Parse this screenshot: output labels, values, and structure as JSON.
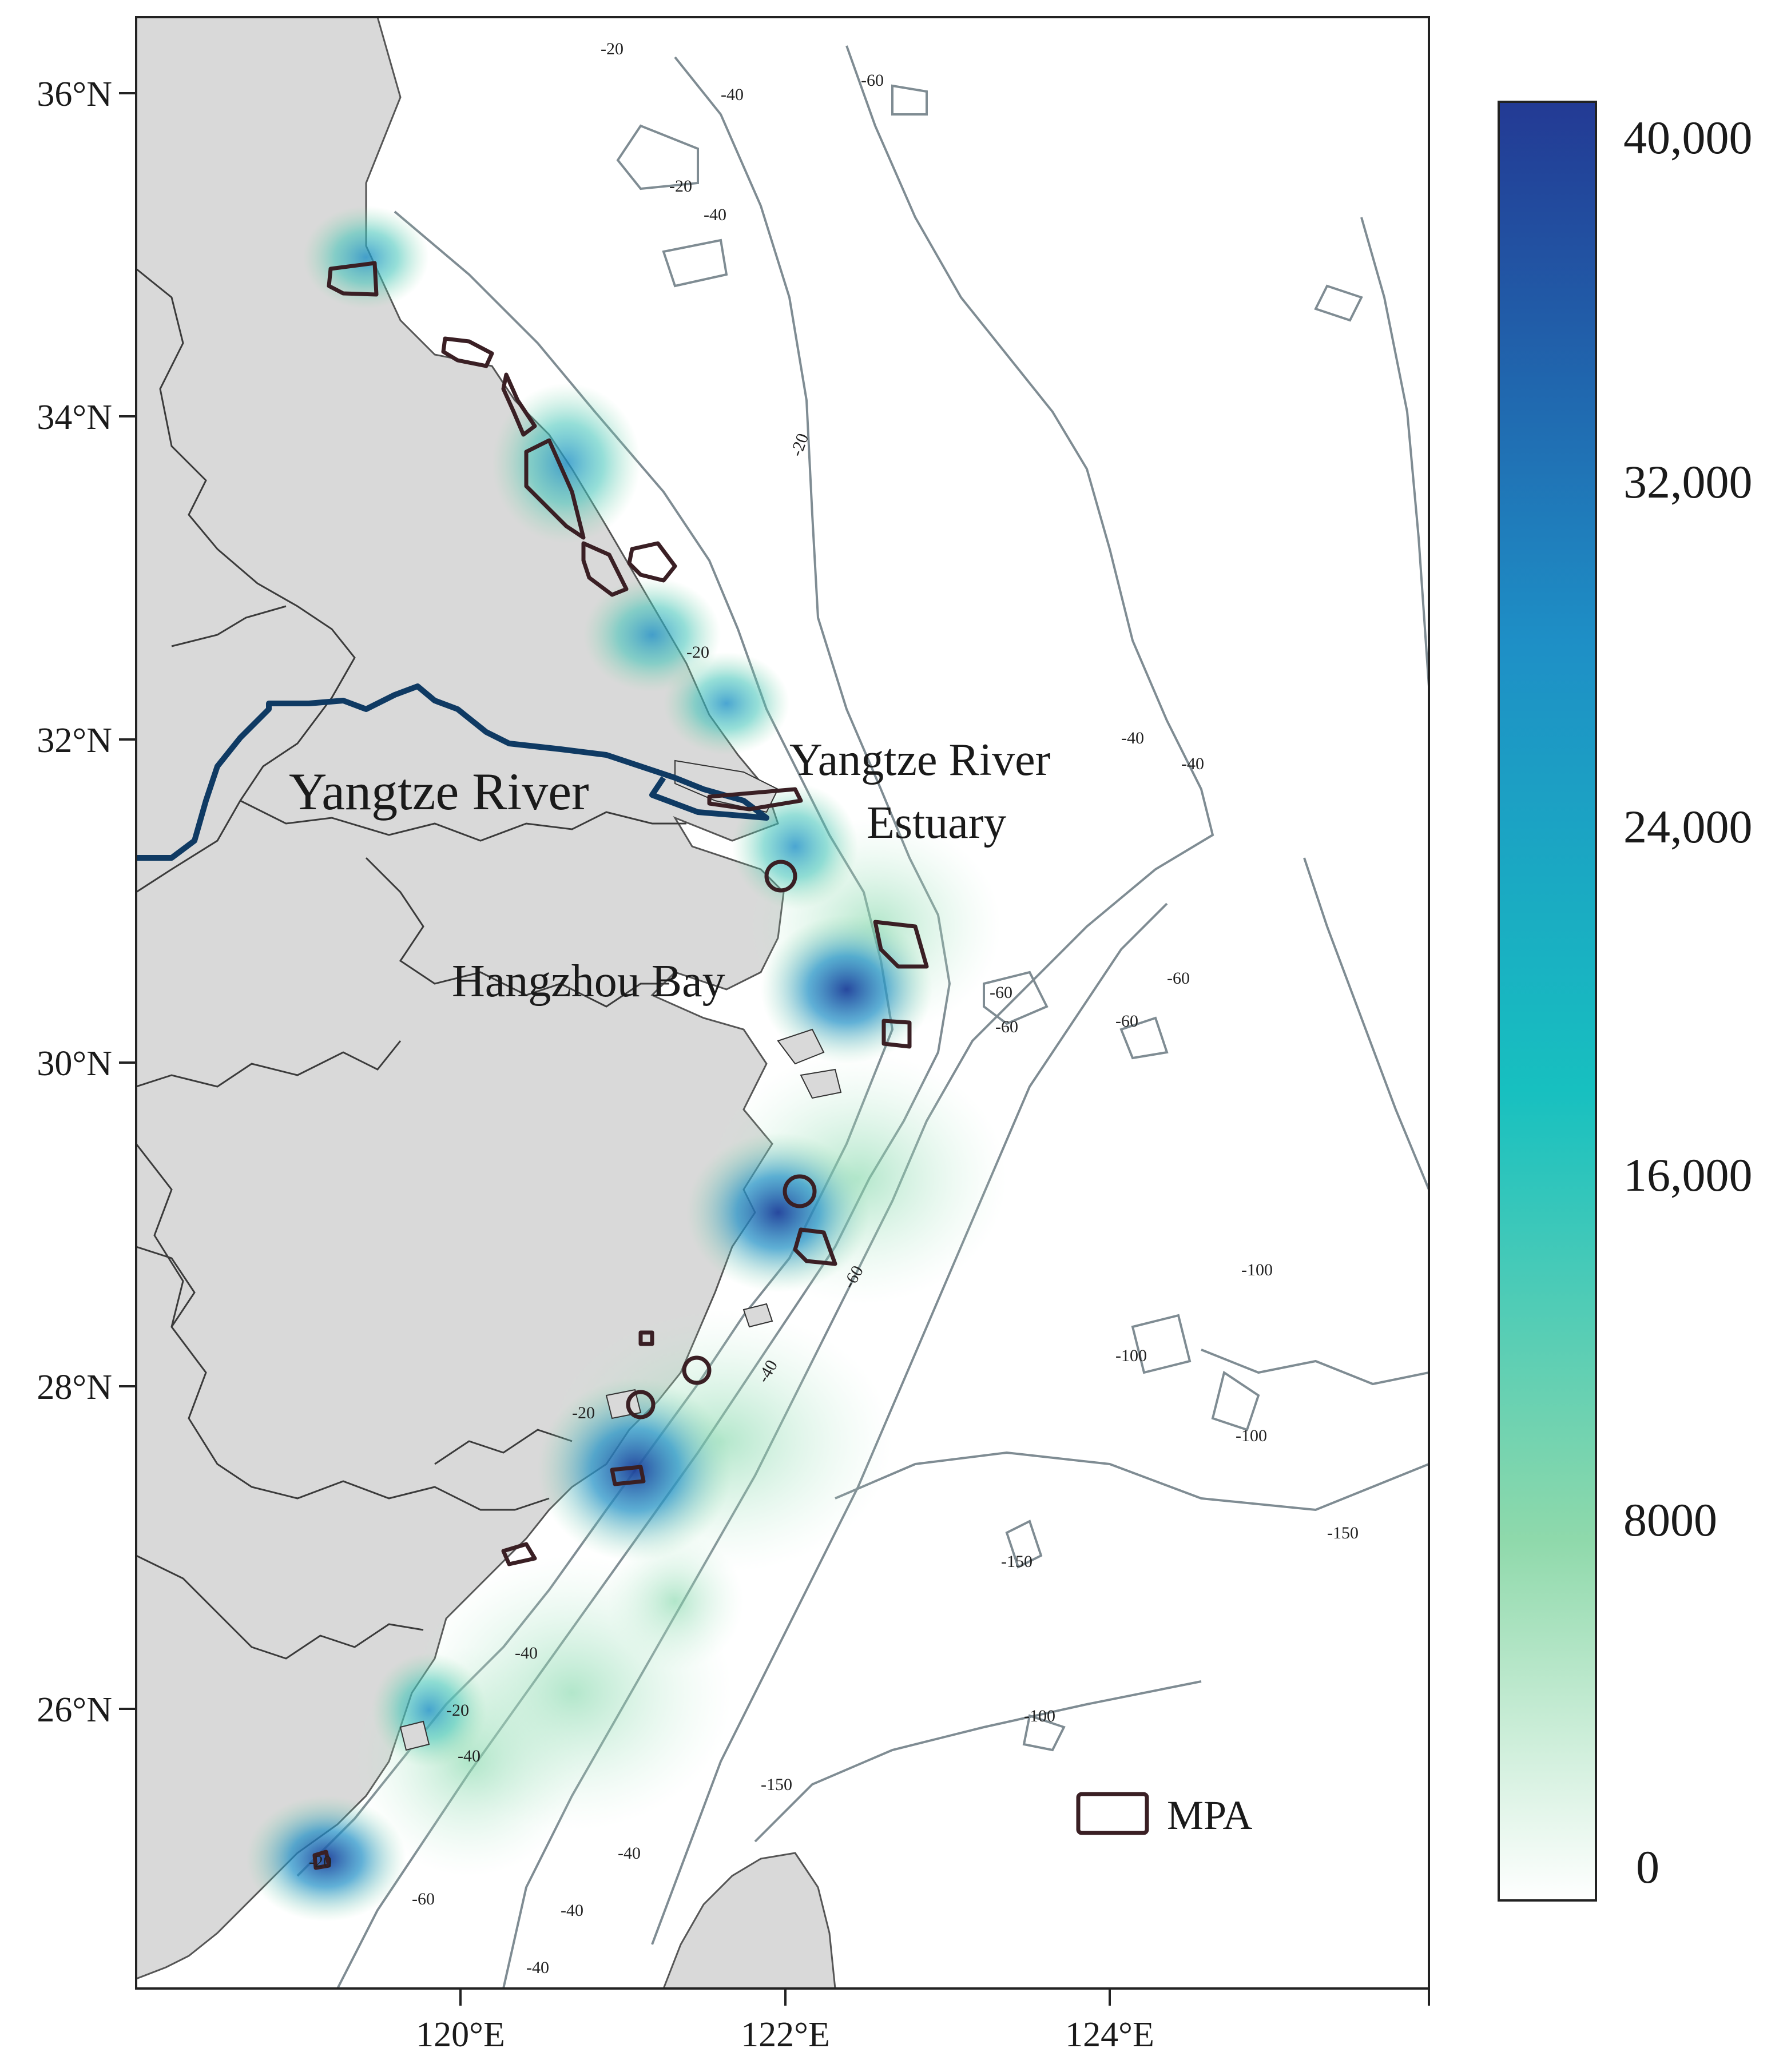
{
  "map": {
    "lat_ticks": [
      "36°N",
      "34°N",
      "32°N",
      "30°N",
      "28°N",
      "26°N"
    ],
    "lon_ticks": [
      "120°E",
      "122°E",
      "124°E"
    ],
    "place_labels": {
      "yangtze_river": "Yangtze River",
      "estuary_line1": "Yangtze River",
      "estuary_line2": "Estuary",
      "hangzhou_bay": "Hangzhou Bay"
    },
    "contour_labels": [
      "-20",
      "-40",
      "-60",
      "-100",
      "-150"
    ],
    "colors": {
      "land": "#d9d9d9",
      "sea": "#ffffff",
      "river": "#0f3a63",
      "mpa_outline": "#3a1f24",
      "contour": "#7f8c93",
      "province_border": "#3b3b3b"
    }
  },
  "colorbar": {
    "tick_labels": [
      "40,000",
      "32,000",
      "24,000",
      "16,000",
      "8000",
      "0"
    ],
    "min": 0,
    "max": 40000,
    "colors": [
      "#ffffff",
      "#8fd9ab",
      "#17c0c0",
      "#1e8fc6",
      "#233a94"
    ]
  },
  "legend": {
    "label": "MPA"
  }
}
